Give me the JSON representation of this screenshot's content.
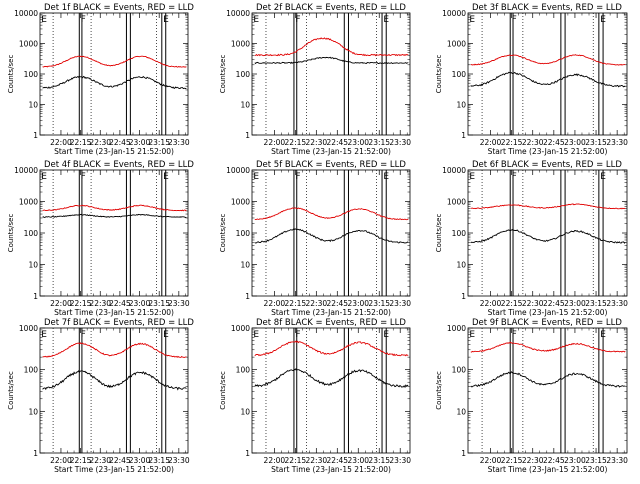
{
  "colors": {
    "events": "#000000",
    "lld": "#e00000",
    "axis": "#000000",
    "background": "#ffffff"
  },
  "common": {
    "ylabel": "Counts/sec",
    "xlabel": "Start Time (23-Jan-15 21:52:00)",
    "x_tick_labels": [
      "22:00",
      "22:15",
      "22:30",
      "22:45",
      "23:00",
      "23:15",
      "23:30"
    ],
    "y_tick_labels": [
      "1",
      "10",
      "100",
      "1000",
      "10000"
    ]
  },
  "chart_data": [
    {
      "type": "line",
      "title": "Det 1f BLACK = Events, RED = LLD",
      "ylim": [
        1,
        10000
      ],
      "log_y": true,
      "xlim_minutes_after_start": [
        -8,
        105
      ],
      "x_ticks_minutes_after_start": [
        8,
        23,
        38,
        53,
        68,
        83,
        98
      ],
      "dotted_vlines_minutes_after_start": [
        2,
        31,
        81
      ],
      "solid_vlines_minutes_after_start": [
        22,
        24,
        58,
        61,
        85,
        88
      ],
      "markers": [
        {
          "label": "E",
          "minute": -7
        },
        {
          "label": "F",
          "minute": 23
        },
        {
          "label": "E",
          "minute": 86
        }
      ],
      "series": [
        {
          "name": "Events",
          "color": "#000000",
          "base": 35,
          "peaks": [
            {
              "t": 23,
              "v": 80
            },
            {
              "t": 69,
              "v": 80
            }
          ],
          "width": 13,
          "noise": 0.06
        },
        {
          "name": "LLD",
          "color": "#e00000",
          "base": 170,
          "peaks": [
            {
              "t": 23,
              "v": 380
            },
            {
              "t": 69,
              "v": 380
            }
          ],
          "width": 13,
          "noise": 0.03
        }
      ]
    },
    {
      "type": "line",
      "title": "Det 2f BLACK = Events, RED = LLD",
      "ylim": [
        1,
        10000
      ],
      "log_y": true,
      "xlim_minutes_after_start": [
        -8,
        105
      ],
      "x_ticks_minutes_after_start": [
        8,
        23,
        38,
        53,
        68,
        83,
        98
      ],
      "dotted_vlines_minutes_after_start": [
        2,
        31,
        81
      ],
      "solid_vlines_minutes_after_start": [
        22,
        24,
        58,
        61,
        85,
        88
      ],
      "markers": [
        {
          "label": "E",
          "minute": -7
        },
        {
          "label": "F",
          "minute": 23
        },
        {
          "label": "E",
          "minute": 86
        }
      ],
      "series": [
        {
          "name": "Events",
          "color": "#000000",
          "base": 230,
          "peaks": [
            {
              "t": 38,
              "v": 290
            },
            {
              "t": 48,
              "v": 320
            }
          ],
          "width": 10,
          "noise": 0.04
        },
        {
          "name": "LLD",
          "color": "#e00000",
          "base": 420,
          "peaks": [
            {
              "t": 38,
              "v": 1100
            },
            {
              "t": 48,
              "v": 1050
            }
          ],
          "width": 11,
          "noise": 0.05
        }
      ]
    },
    {
      "type": "line",
      "title": "Det 3f BLACK = Events, RED = LLD",
      "ylim": [
        1,
        10000
      ],
      "log_y": true,
      "xlim_minutes_after_start": [
        -8,
        105
      ],
      "x_ticks_minutes_after_start": [
        8,
        23,
        38,
        53,
        68,
        83,
        98
      ],
      "dotted_vlines_minutes_after_start": [
        2,
        31,
        81
      ],
      "solid_vlines_minutes_after_start": [
        22,
        24,
        58,
        61,
        85,
        88
      ],
      "markers": [
        {
          "label": "E",
          "minute": -7
        },
        {
          "label": "F",
          "minute": 23
        },
        {
          "label": "E",
          "minute": 86
        }
      ],
      "series": [
        {
          "name": "Events",
          "color": "#000000",
          "base": 40,
          "peaks": [
            {
              "t": 23,
              "v": 110
            },
            {
              "t": 69,
              "v": 95
            }
          ],
          "width": 13,
          "noise": 0.06
        },
        {
          "name": "LLD",
          "color": "#e00000",
          "base": 200,
          "peaks": [
            {
              "t": 23,
              "v": 420
            },
            {
              "t": 69,
              "v": 420
            }
          ],
          "width": 13,
          "noise": 0.03
        }
      ]
    },
    {
      "type": "line",
      "title": "Det 4f BLACK = Events, RED = LLD",
      "ylim": [
        1,
        10000
      ],
      "log_y": true,
      "xlim_minutes_after_start": [
        -8,
        105
      ],
      "x_ticks_minutes_after_start": [
        8,
        23,
        38,
        53,
        68,
        83,
        98
      ],
      "dotted_vlines_minutes_after_start": [
        2,
        31,
        81
      ],
      "solid_vlines_minutes_after_start": [
        22,
        24,
        58,
        61,
        85,
        88
      ],
      "markers": [
        {
          "label": "E",
          "minute": -7
        },
        {
          "label": "F",
          "minute": 23
        },
        {
          "label": "E",
          "minute": 86
        }
      ],
      "series": [
        {
          "name": "Events",
          "color": "#000000",
          "base": 320,
          "peaks": [
            {
              "t": 23,
              "v": 380
            },
            {
              "t": 69,
              "v": 380
            }
          ],
          "width": 13,
          "noise": 0.03
        },
        {
          "name": "LLD",
          "color": "#e00000",
          "base": 520,
          "peaks": [
            {
              "t": 23,
              "v": 750
            },
            {
              "t": 69,
              "v": 750
            }
          ],
          "width": 13,
          "noise": 0.03
        }
      ]
    },
    {
      "type": "line",
      "title": "Det 5f BLACK = Events, RED = LLD",
      "ylim": [
        1,
        10000
      ],
      "log_y": true,
      "xlim_minutes_after_start": [
        -8,
        105
      ],
      "x_ticks_minutes_after_start": [
        8,
        23,
        38,
        53,
        68,
        83,
        98
      ],
      "dotted_vlines_minutes_after_start": [
        2,
        31,
        81
      ],
      "solid_vlines_minutes_after_start": [
        22,
        24,
        58,
        61,
        85,
        88
      ],
      "markers": [
        {
          "label": "E",
          "minute": -7
        },
        {
          "label": "F",
          "minute": 23
        },
        {
          "label": "E",
          "minute": 86
        }
      ],
      "series": [
        {
          "name": "Events",
          "color": "#000000",
          "base": 50,
          "peaks": [
            {
              "t": 23,
              "v": 130
            },
            {
              "t": 69,
              "v": 120
            }
          ],
          "width": 13,
          "noise": 0.05
        },
        {
          "name": "LLD",
          "color": "#e00000",
          "base": 270,
          "peaks": [
            {
              "t": 23,
              "v": 620
            },
            {
              "t": 69,
              "v": 580
            }
          ],
          "width": 13,
          "noise": 0.03
        }
      ]
    },
    {
      "type": "line",
      "title": "Det 6f BLACK = Events, RED = LLD",
      "ylim": [
        1,
        10000
      ],
      "log_y": true,
      "xlim_minutes_after_start": [
        -8,
        105
      ],
      "x_ticks_minutes_after_start": [
        8,
        23,
        38,
        53,
        68,
        83,
        98
      ],
      "dotted_vlines_minutes_after_start": [
        2,
        31,
        81
      ],
      "solid_vlines_minutes_after_start": [
        22,
        24,
        58,
        61,
        85,
        88
      ],
      "markers": [
        {
          "label": "E",
          "minute": -7
        },
        {
          "label": "F",
          "minute": 23
        },
        {
          "label": "E",
          "minute": 86
        }
      ],
      "series": [
        {
          "name": "Events",
          "color": "#000000",
          "base": 50,
          "peaks": [
            {
              "t": 23,
              "v": 125
            },
            {
              "t": 69,
              "v": 115
            }
          ],
          "width": 13,
          "noise": 0.05
        },
        {
          "name": "LLD",
          "color": "#e00000",
          "base": 600,
          "peaks": [
            {
              "t": 23,
              "v": 780
            },
            {
              "t": 69,
              "v": 820
            }
          ],
          "width": 14,
          "noise": 0.03
        }
      ]
    },
    {
      "type": "line",
      "title": "Det 7f BLACK = Events, RED = LLD",
      "ylim": [
        1,
        1000
      ],
      "log_y": true,
      "xlim_minutes_after_start": [
        -8,
        105
      ],
      "x_ticks_minutes_after_start": [
        8,
        23,
        38,
        53,
        68,
        83,
        98
      ],
      "dotted_vlines_minutes_after_start": [
        2,
        31,
        81
      ],
      "solid_vlines_minutes_after_start": [
        22,
        24,
        58,
        61,
        85,
        88
      ],
      "markers": [
        {
          "label": "E",
          "minute": -7
        },
        {
          "label": "F",
          "minute": 23
        },
        {
          "label": "E",
          "minute": 86
        }
      ],
      "series": [
        {
          "name": "Events",
          "color": "#000000",
          "base": 35,
          "peaks": [
            {
              "t": 23,
              "v": 90
            },
            {
              "t": 69,
              "v": 85
            }
          ],
          "width": 13,
          "noise": 0.06
        },
        {
          "name": "LLD",
          "color": "#e00000",
          "base": 200,
          "peaks": [
            {
              "t": 23,
              "v": 430
            },
            {
              "t": 69,
              "v": 420
            }
          ],
          "width": 13,
          "noise": 0.03
        }
      ]
    },
    {
      "type": "line",
      "title": "Det 8f BLACK = Events, RED = LLD",
      "ylim": [
        1,
        1000
      ],
      "log_y": true,
      "xlim_minutes_after_start": [
        -8,
        105
      ],
      "x_ticks_minutes_after_start": [
        8,
        23,
        38,
        53,
        68,
        83,
        98
      ],
      "dotted_vlines_minutes_after_start": [
        2,
        31,
        81
      ],
      "solid_vlines_minutes_after_start": [
        22,
        24,
        58,
        61,
        85,
        88
      ],
      "markers": [
        {
          "label": "E",
          "minute": -7
        },
        {
          "label": "F",
          "minute": 23
        },
        {
          "label": "E",
          "minute": 86
        }
      ],
      "series": [
        {
          "name": "Events",
          "color": "#000000",
          "base": 40,
          "peaks": [
            {
              "t": 23,
              "v": 100
            },
            {
              "t": 69,
              "v": 95
            }
          ],
          "width": 13,
          "noise": 0.06
        },
        {
          "name": "LLD",
          "color": "#e00000",
          "base": 220,
          "peaks": [
            {
              "t": 23,
              "v": 470
            },
            {
              "t": 69,
              "v": 450
            }
          ],
          "width": 13,
          "noise": 0.04
        }
      ]
    },
    {
      "type": "line",
      "title": "Det 9f BLACK = Events, RED = LLD",
      "ylim": [
        1,
        1000
      ],
      "log_y": true,
      "xlim_minutes_after_start": [
        -8,
        105
      ],
      "x_ticks_minutes_after_start": [
        8,
        23,
        38,
        53,
        68,
        83,
        98
      ],
      "dotted_vlines_minutes_after_start": [
        2,
        31,
        81
      ],
      "solid_vlines_minutes_after_start": [
        22,
        24,
        58,
        61,
        85,
        88
      ],
      "markers": [
        {
          "label": "E",
          "minute": -7
        },
        {
          "label": "F",
          "minute": 23
        },
        {
          "label": "E",
          "minute": 86
        }
      ],
      "series": [
        {
          "name": "Events",
          "color": "#000000",
          "base": 40,
          "peaks": [
            {
              "t": 23,
              "v": 85
            },
            {
              "t": 69,
              "v": 80
            }
          ],
          "width": 13,
          "noise": 0.05
        },
        {
          "name": "LLD",
          "color": "#e00000",
          "base": 270,
          "peaks": [
            {
              "t": 23,
              "v": 440
            },
            {
              "t": 69,
              "v": 420
            }
          ],
          "width": 13,
          "noise": 0.03
        }
      ]
    }
  ]
}
